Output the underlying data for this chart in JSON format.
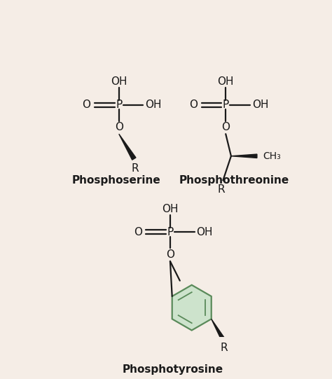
{
  "bg_color": "#f5ede6",
  "line_color": "#1a1a1a",
  "ring_fill": "#cde3cc",
  "ring_edge": "#5a8a5a",
  "phosphoserine_label": "Phosphoserine",
  "phosphothreonine_label": "Phosphothreonine",
  "phosphotyrosine_label": "Phosphotyrosine",
  "figsize": [
    4.74,
    5.41
  ],
  "dpi": 100
}
